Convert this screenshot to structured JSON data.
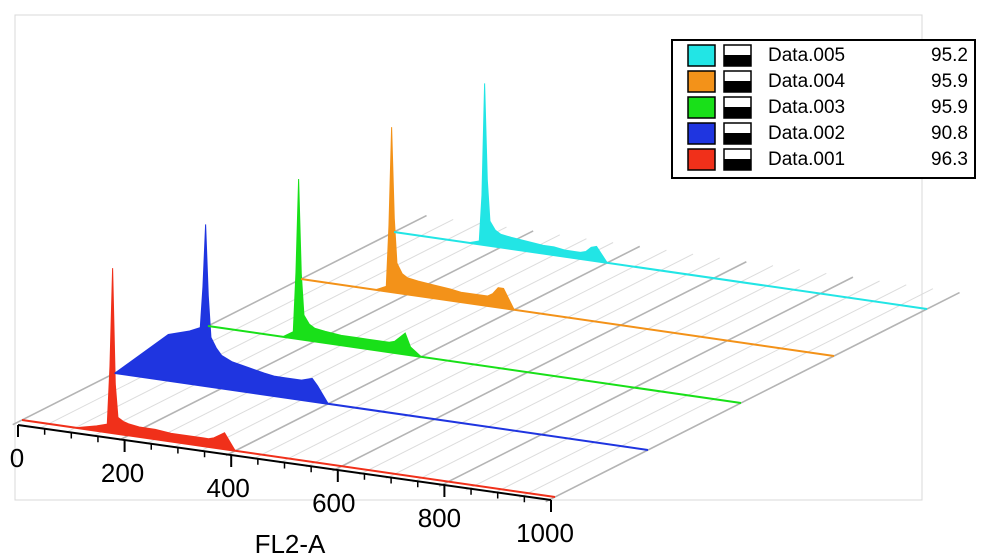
{
  "chart_data": {
    "type": "histogram3d",
    "x_label": "FL2-A",
    "xlim": [
      0,
      1000
    ],
    "xticks": [
      0,
      200,
      400,
      600,
      800,
      1000
    ],
    "ylim": [
      0,
      100
    ],
    "x": [
      0,
      100,
      140,
      160,
      165,
      170,
      175,
      180,
      190,
      200,
      220,
      250,
      280,
      300,
      320,
      340,
      350,
      360,
      370,
      380,
      400,
      450,
      600,
      800,
      1000
    ],
    "grid": true,
    "legend_position": "upper right",
    "series": [
      {
        "name": "Data.005",
        "legend_value": 95.2,
        "color": "#22e5e5",
        "values": [
          0,
          0,
          0,
          2,
          30,
          98,
          40,
          15,
          10,
          8,
          7,
          6,
          5,
          5,
          4,
          4,
          4,
          5,
          8,
          9,
          0,
          0,
          0,
          0,
          0
        ]
      },
      {
        "name": "Data.004",
        "legend_value": 95.9,
        "color": "#f39219",
        "values": [
          0,
          0,
          0,
          3,
          40,
          100,
          45,
          18,
          12,
          10,
          9,
          8,
          7,
          6,
          6,
          6,
          6,
          8,
          12,
          12,
          0,
          0,
          0,
          0,
          0
        ]
      },
      {
        "name": "Data.003",
        "legend_value": 95.9,
        "color": "#19e019",
        "values": [
          0,
          0,
          0,
          4,
          40,
          97,
          40,
          15,
          10,
          8,
          7,
          6,
          6,
          6,
          6,
          6,
          7,
          10,
          13,
          5,
          0,
          0,
          0,
          0,
          0
        ]
      },
      {
        "name": "Data.002",
        "legend_value": 90.8,
        "color": "#1f35e0",
        "values": [
          0,
          28,
          32,
          35,
          60,
          98,
          55,
          30,
          24,
          20,
          17,
          15,
          13,
          12,
          12,
          12,
          12,
          13,
          14,
          10,
          0,
          0,
          0,
          0,
          0
        ]
      },
      {
        "name": "Data.001",
        "legend_value": 96.3,
        "color": "#f0301a",
        "values": [
          0,
          0,
          3,
          5,
          40,
          100,
          30,
          10,
          8,
          7,
          6,
          6,
          5,
          5,
          5,
          5,
          5,
          6,
          8,
          10,
          0,
          0,
          0,
          0,
          0
        ]
      }
    ]
  }
}
